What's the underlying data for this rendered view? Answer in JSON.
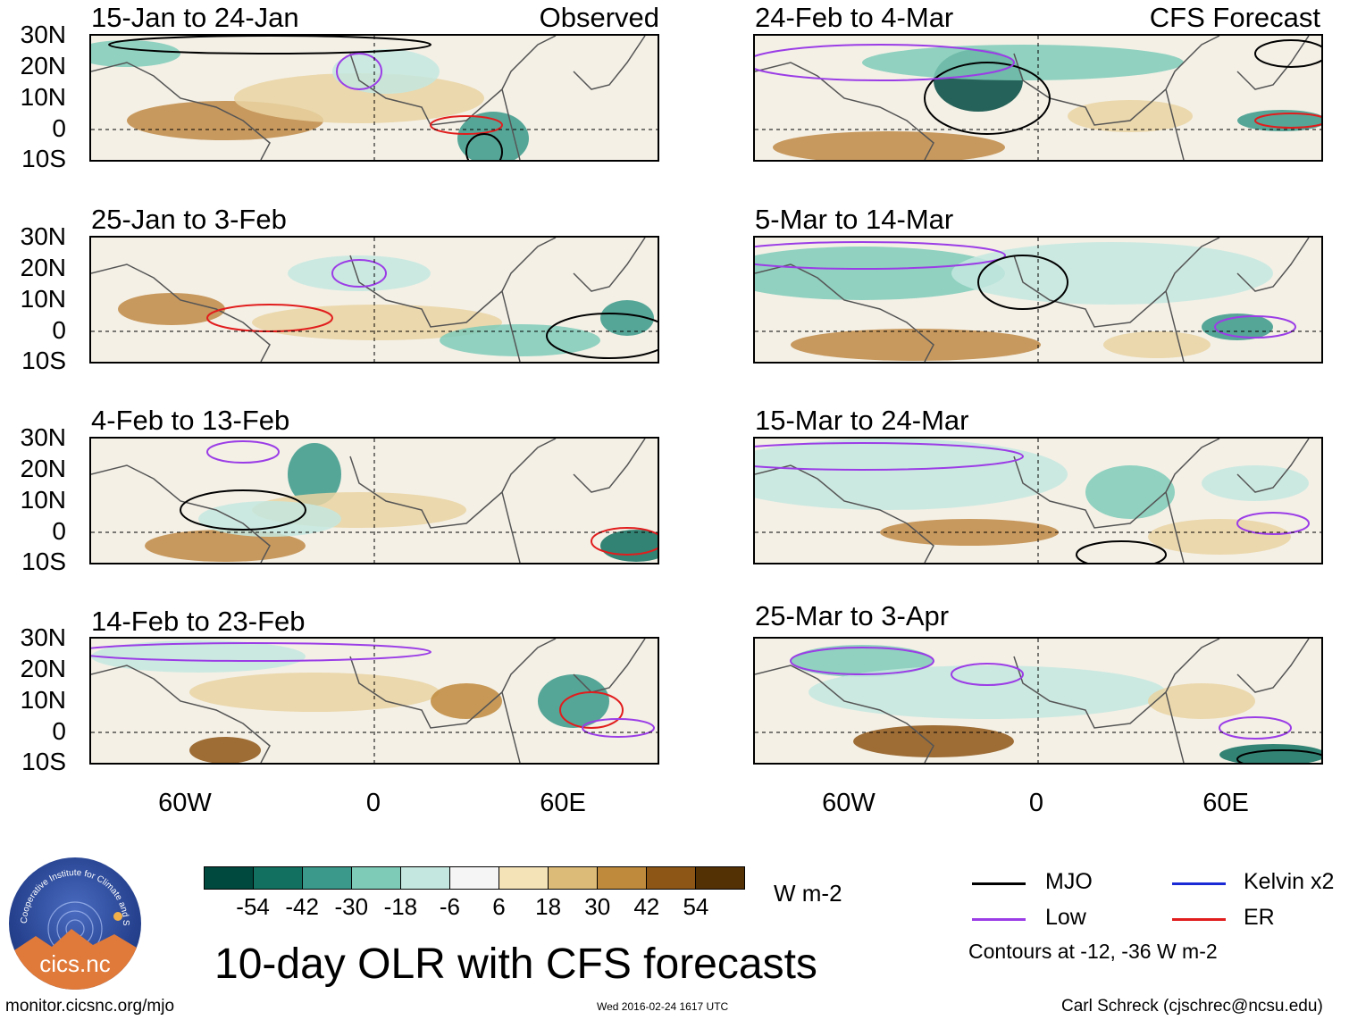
{
  "panels": {
    "p0": {
      "title": "15-Jan to 24-Jan",
      "tag": "Observed"
    },
    "p1": {
      "title": "25-Jan to 3-Feb",
      "tag": ""
    },
    "p2": {
      "title": "4-Feb to 13-Feb",
      "tag": ""
    },
    "p3": {
      "title": "14-Feb to 23-Feb",
      "tag": ""
    },
    "p4": {
      "title": "24-Feb to 4-Mar",
      "tag": "CFS Forecast"
    },
    "p5": {
      "title": "5-Mar to 14-Mar",
      "tag": ""
    },
    "p6": {
      "title": "15-Mar to 24-Mar",
      "tag": ""
    },
    "p7": {
      "title": "25-Mar to 3-Apr",
      "tag": ""
    }
  },
  "lat_labels": [
    "30N",
    "20N",
    "10N",
    "0",
    "10S"
  ],
  "lon_labels": [
    "60W",
    "0",
    "60E"
  ],
  "colorbar": {
    "colors": [
      "#00493f",
      "#11705f",
      "#3a998a",
      "#7ecbb8",
      "#c4e8df",
      "#f5f5f5",
      "#f5e3b8",
      "#dcbb78",
      "#bf8a3c",
      "#8e5616",
      "#543005"
    ],
    "labels": [
      "-54",
      "-42",
      "-30",
      "-18",
      "-6",
      "6",
      "18",
      "30",
      "42",
      "54"
    ],
    "units": "W m-2"
  },
  "title": "10-day OLR with CFS forecasts",
  "legend": {
    "mjo": {
      "label": "MJO",
      "color": "#000000"
    },
    "kelvin": {
      "label": "Kelvin x2",
      "color": "#1a2bd6"
    },
    "low": {
      "label": "Low",
      "color": "#9b3de6"
    },
    "er": {
      "label": "ER",
      "color": "#e11d1d"
    },
    "note": "Contours at -12, -36 W m-2"
  },
  "logo_text": "cics.nc",
  "logo_ring_text": "Cooperative Institute for Climate and Satellites",
  "footer": {
    "left": "monitor.cicsnc.org/mjo",
    "center": "Wed 2016-02-24 1617 UTC",
    "right": "Carl Schreck (cjschrec@ncsu.edu)"
  }
}
